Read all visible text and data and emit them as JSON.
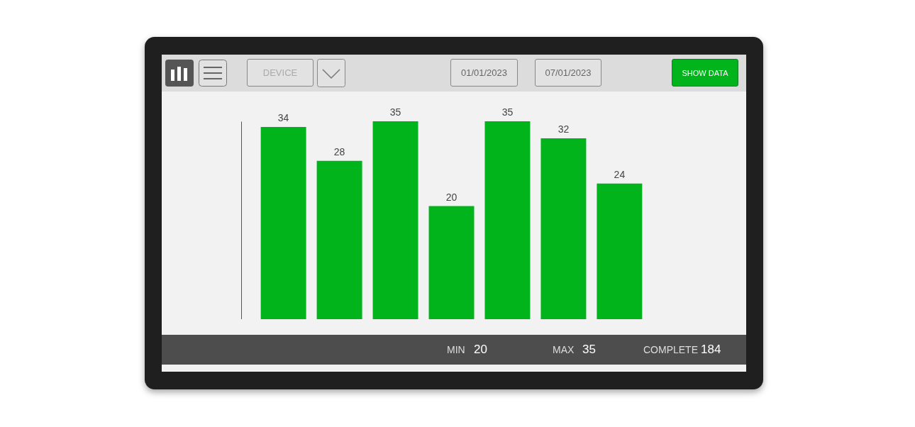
{
  "chart_data": {
    "type": "bar",
    "categories": [
      null,
      null,
      null,
      null,
      null,
      null,
      null
    ],
    "values": [
      34,
      28,
      35,
      20,
      35,
      32,
      24
    ],
    "color": "#02b41c",
    "data_labels": true,
    "annotations": [
      "DEVICE",
      "01/01/2023",
      "07/01/2023",
      "SHOW DATA",
      "MIN",
      "20",
      "MAX",
      "35",
      "COMPLETE",
      "184"
    ]
  }
}
